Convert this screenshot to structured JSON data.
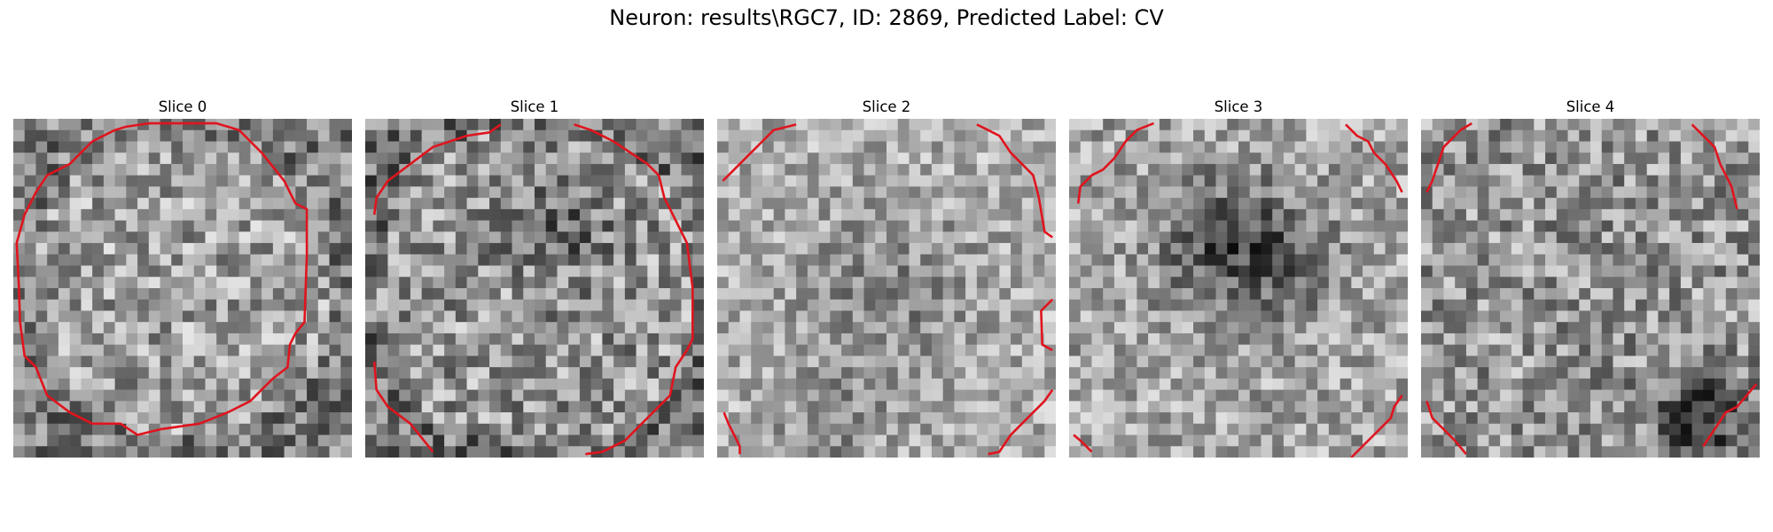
{
  "figure": {
    "title": "Neuron: results\\RGC7, ID: 2869, Predicted Label: CV"
  },
  "colors": {
    "contour": "#e0141e",
    "background": "#ffffff"
  },
  "panels": [
    {
      "title": "Slice 0",
      "image": "grayscale-noise-patch",
      "contour": "red-cell-outline"
    },
    {
      "title": "Slice 1",
      "image": "grayscale-noise-patch",
      "contour": "red-cell-outline"
    },
    {
      "title": "Slice 2",
      "image": "grayscale-noise-patch",
      "contour": "red-cell-outline"
    },
    {
      "title": "Slice 3",
      "image": "grayscale-noise-patch",
      "contour": "red-cell-outline"
    },
    {
      "title": "Slice 4",
      "image": "grayscale-noise-patch",
      "contour": "red-cell-outline"
    }
  ]
}
